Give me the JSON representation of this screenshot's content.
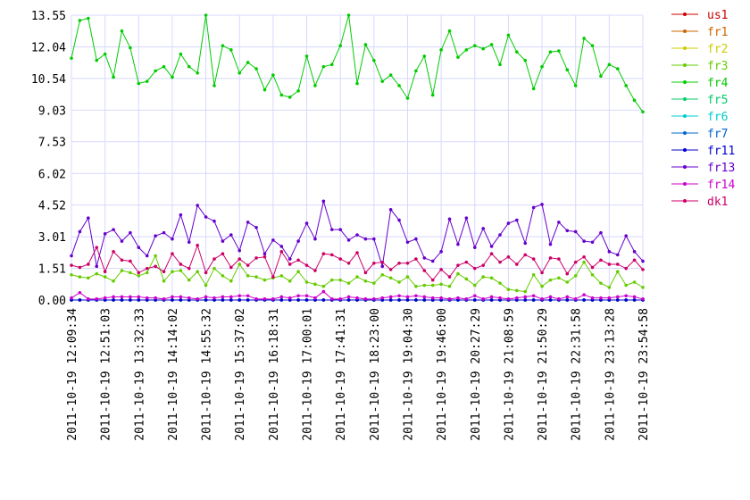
{
  "chart_data": {
    "type": "line",
    "categories": [
      "2011-10-19 12:09:34",
      null,
      null,
      null,
      "2011-10-19 12:51:03",
      null,
      null,
      null,
      "2011-10-19 13:32:33",
      null,
      null,
      null,
      "2011-10-19 14:14:02",
      null,
      null,
      null,
      "2011-10-19 14:55:32",
      null,
      null,
      null,
      "2011-10-19 15:37:02",
      null,
      null,
      null,
      "2011-10-19 16:18:31",
      null,
      null,
      null,
      "2011-10-19 17:00:01",
      null,
      null,
      null,
      "2011-10-19 17:41:31",
      null,
      null,
      null,
      "2011-10-19 18:23:00",
      null,
      null,
      null,
      "2011-10-19 19:04:30",
      null,
      null,
      null,
      "2011-10-19 19:46:00",
      null,
      null,
      null,
      "2011-10-19 20:27:29",
      null,
      null,
      null,
      "2011-10-19 21:08:59",
      null,
      null,
      null,
      "2011-10-19 21:50:29",
      null,
      null,
      null,
      "2011-10-19 22:31:58",
      null,
      null,
      null,
      "2011-10-19 23:13:28",
      null,
      null,
      null,
      "2011-10-19 23:54:58"
    ],
    "ylim": [
      0,
      13.55
    ],
    "yticks": [
      {
        "value": 0,
        "label": "0.00"
      },
      1.51,
      3.01,
      4.52,
      6.02,
      7.53,
      9.03,
      10.54,
      12.04,
      13.55
    ],
    "grid": true,
    "legend": "right",
    "series": [
      {
        "name": "us1",
        "color": "#cc0000",
        "values": [
          0,
          0,
          0,
          0,
          0,
          0,
          0,
          0,
          0,
          0,
          0,
          0,
          0,
          0,
          0,
          0,
          0,
          0,
          0,
          0,
          0,
          0,
          0,
          0,
          0,
          0,
          0,
          0,
          0,
          0,
          0,
          0,
          0,
          0,
          0,
          0,
          0,
          0,
          0,
          0,
          0,
          0,
          0,
          0,
          0,
          0,
          0,
          0,
          0,
          0,
          0,
          0,
          0,
          0,
          0,
          0,
          0,
          0,
          0,
          0,
          0,
          0,
          0,
          0,
          0,
          0,
          0,
          0,
          0
        ]
      },
      {
        "name": "fr1",
        "color": "#cc6600",
        "values": [
          0,
          0,
          0,
          0,
          0,
          0,
          0,
          0,
          0,
          0,
          0,
          0,
          0,
          0,
          0,
          0,
          0,
          0,
          0,
          0,
          0,
          0,
          0,
          0,
          0,
          0,
          0,
          0,
          0,
          0,
          0,
          0,
          0,
          0,
          0,
          0,
          0,
          0,
          0,
          0,
          0,
          0,
          0,
          0,
          0,
          0,
          0,
          0,
          0,
          0,
          0,
          0,
          0,
          0,
          0,
          0,
          0,
          0,
          0,
          0,
          0,
          0,
          0,
          0,
          0,
          0,
          0,
          0,
          0
        ]
      },
      {
        "name": "fr2",
        "color": "#cccc00",
        "values": [
          0,
          0,
          0,
          0,
          0,
          0,
          0,
          0,
          0,
          0,
          0,
          0,
          0,
          0,
          0,
          0,
          0,
          0,
          0,
          0,
          0,
          0,
          0,
          0,
          0,
          0,
          0,
          0,
          0,
          0,
          0,
          0,
          0,
          0,
          0,
          0,
          0,
          0,
          0,
          0,
          0,
          0,
          0,
          0,
          0,
          0,
          0,
          0,
          0,
          0,
          0,
          0,
          0,
          0,
          0,
          0,
          0,
          0,
          0,
          0,
          0,
          0,
          0,
          0,
          0,
          0,
          0,
          0,
          0
        ]
      },
      {
        "name": "fr3",
        "color": "#66cc00",
        "values": [
          1.2,
          1.1,
          1.05,
          1.25,
          1.1,
          0.9,
          1.4,
          1.3,
          1.15,
          1.3,
          2.1,
          0.9,
          1.35,
          1.4,
          0.95,
          1.35,
          0.7,
          1.5,
          1.15,
          0.9,
          1.7,
          1.15,
          1.1,
          0.95,
          1.05,
          1.15,
          0.9,
          1.35,
          0.85,
          0.75,
          0.65,
          0.95,
          0.95,
          0.8,
          1.1,
          0.9,
          0.8,
          1.2,
          1.05,
          0.85,
          1.1,
          0.65,
          0.7,
          0.7,
          0.75,
          0.65,
          1.25,
          1.0,
          0.7,
          1.1,
          1.05,
          0.8,
          0.5,
          0.45,
          0.4,
          1.2,
          0.65,
          0.95,
          1.05,
          0.85,
          1.15,
          1.8,
          1.2,
          0.8,
          0.6,
          1.35,
          0.7,
          0.85,
          0.6
        ]
      },
      {
        "name": "fr4",
        "color": "#00cc00",
        "values": [
          11.5,
          13.3,
          13.4,
          11.4,
          11.7,
          10.6,
          12.8,
          12.0,
          10.3,
          10.4,
          10.9,
          11.1,
          10.6,
          11.7,
          11.1,
          10.8,
          13.55,
          10.2,
          12.1,
          11.9,
          10.8,
          11.3,
          11.0,
          10.0,
          10.7,
          9.75,
          9.65,
          9.95,
          11.6,
          10.2,
          11.1,
          11.2,
          12.1,
          13.55,
          10.3,
          12.15,
          11.4,
          10.4,
          10.7,
          10.2,
          9.6,
          10.9,
          11.6,
          9.75,
          11.9,
          12.8,
          11.55,
          11.9,
          12.1,
          11.95,
          12.15,
          11.2,
          12.6,
          11.8,
          11.4,
          10.05,
          11.1,
          11.8,
          11.85,
          10.95,
          10.2,
          12.45,
          12.1,
          10.65,
          11.2,
          11.0,
          10.2,
          9.5,
          8.95
        ]
      },
      {
        "name": "fr5",
        "color": "#00cc66",
        "values": [
          0,
          0,
          0,
          0,
          0,
          0,
          0,
          0,
          0,
          0,
          0,
          0,
          0,
          0,
          0,
          0,
          0,
          0,
          0,
          0,
          0,
          0,
          0,
          0,
          0,
          0,
          0,
          0,
          0,
          0,
          0,
          0,
          0,
          0,
          0,
          0,
          0,
          0,
          0,
          0,
          0,
          0,
          0,
          0,
          0,
          0,
          0,
          0,
          0,
          0,
          0,
          0,
          0,
          0,
          0,
          0,
          0,
          0,
          0,
          0,
          0,
          0,
          0,
          0,
          0,
          0,
          0,
          0,
          0
        ]
      },
      {
        "name": "fr6",
        "color": "#00cccc",
        "values": [
          0,
          0,
          0,
          0,
          0,
          0,
          0,
          0,
          0,
          0,
          0,
          0,
          0,
          0,
          0,
          0,
          0,
          0,
          0,
          0,
          0,
          0,
          0,
          0,
          0,
          0,
          0,
          0,
          0,
          0,
          0,
          0,
          0,
          0,
          0,
          0,
          0,
          0,
          0,
          0,
          0,
          0,
          0,
          0,
          0,
          0,
          0,
          0,
          0,
          0,
          0,
          0,
          0,
          0,
          0,
          0,
          0,
          0,
          0,
          0,
          0,
          0,
          0,
          0,
          0,
          0,
          0,
          0,
          0
        ]
      },
      {
        "name": "fr7",
        "color": "#0066cc",
        "values": [
          0,
          0,
          0,
          0,
          0,
          0,
          0,
          0,
          0,
          0,
          0,
          0,
          0,
          0,
          0,
          0,
          0,
          0,
          0,
          0,
          0,
          0,
          0,
          0,
          0,
          0,
          0,
          0,
          0,
          0,
          0,
          0,
          0,
          0,
          0,
          0,
          0,
          0,
          0,
          0,
          0,
          0,
          0,
          0,
          0,
          0,
          0,
          0,
          0,
          0,
          0,
          0,
          0,
          0,
          0,
          0,
          0,
          0,
          0,
          0,
          0,
          0,
          0,
          0,
          0,
          0,
          0,
          0,
          0
        ]
      },
      {
        "name": "fr11",
        "color": "#0000cc",
        "values": [
          0,
          0,
          0,
          0,
          0,
          0,
          0,
          0,
          0,
          0,
          0,
          0,
          0,
          0,
          0,
          0,
          0,
          0,
          0,
          0,
          0,
          0,
          0,
          0,
          0,
          0,
          0,
          0,
          0,
          0,
          0,
          0,
          0,
          0,
          0,
          0,
          0,
          0,
          0,
          0,
          0,
          0,
          0,
          0,
          0,
          0,
          0,
          0,
          0,
          0,
          0,
          0,
          0,
          0,
          0,
          0,
          0,
          0,
          0,
          0,
          0,
          0,
          0,
          0,
          0,
          0,
          0,
          0,
          0
        ]
      },
      {
        "name": "fr13",
        "color": "#6600cc",
        "values": [
          2.1,
          3.25,
          3.9,
          1.6,
          3.15,
          3.35,
          2.8,
          3.2,
          2.5,
          2.1,
          3.05,
          3.2,
          2.9,
          4.05,
          2.75,
          4.5,
          3.95,
          3.75,
          2.8,
          3.1,
          2.35,
          3.7,
          3.45,
          2.2,
          2.85,
          2.55,
          1.95,
          2.8,
          3.65,
          2.9,
          4.7,
          3.35,
          3.35,
          2.85,
          3.1,
          2.9,
          2.9,
          1.6,
          4.3,
          3.8,
          2.75,
          2.9,
          2.0,
          1.85,
          2.3,
          3.85,
          2.65,
          3.9,
          2.5,
          3.4,
          2.55,
          3.1,
          3.65,
          3.8,
          2.7,
          4.4,
          4.55,
          2.65,
          3.7,
          3.3,
          3.25,
          2.8,
          2.75,
          3.2,
          2.3,
          2.15,
          3.05,
          2.3,
          1.85
        ]
      },
      {
        "name": "fr14",
        "color": "#cc00cc",
        "values": [
          0.1,
          0.35,
          0.05,
          0.05,
          0.1,
          0.15,
          0.15,
          0.15,
          0.15,
          0.1,
          0.1,
          0.05,
          0.15,
          0.15,
          0.1,
          0.05,
          0.15,
          0.1,
          0.15,
          0.15,
          0.2,
          0.2,
          0.05,
          0.05,
          0.05,
          0.15,
          0.1,
          0.2,
          0.2,
          0.1,
          0.4,
          0.05,
          0.05,
          0.15,
          0.1,
          0.05,
          0.05,
          0.1,
          0.15,
          0.2,
          0.15,
          0.2,
          0.15,
          0.1,
          0.1,
          0.05,
          0.1,
          0.05,
          0.2,
          0.05,
          0.15,
          0.1,
          0.05,
          0.1,
          0.15,
          0.2,
          0.05,
          0.15,
          0.05,
          0.15,
          0.05,
          0.25,
          0.1,
          0.1,
          0.1,
          0.15,
          0.2,
          0.15,
          0.05
        ]
      },
      {
        "name": "dk1",
        "color": "#cc0066",
        "values": [
          1.65,
          1.55,
          1.7,
          2.5,
          1.35,
          2.3,
          1.9,
          1.85,
          1.3,
          1.5,
          1.6,
          1.35,
          2.2,
          1.7,
          1.5,
          2.6,
          1.3,
          1.95,
          2.2,
          1.55,
          1.95,
          1.65,
          2.0,
          2.05,
          1.1,
          2.3,
          1.7,
          1.9,
          1.65,
          1.4,
          2.2,
          2.15,
          1.95,
          1.75,
          2.25,
          1.3,
          1.75,
          1.8,
          1.45,
          1.75,
          1.75,
          1.95,
          1.4,
          0.95,
          1.45,
          1.1,
          1.65,
          1.8,
          1.5,
          1.65,
          2.2,
          1.8,
          2.05,
          1.7,
          2.15,
          1.95,
          1.3,
          2.0,
          1.95,
          1.25,
          1.8,
          2.05,
          1.55,
          1.9,
          1.7,
          1.7,
          1.5,
          1.9,
          1.45
        ]
      }
    ]
  }
}
